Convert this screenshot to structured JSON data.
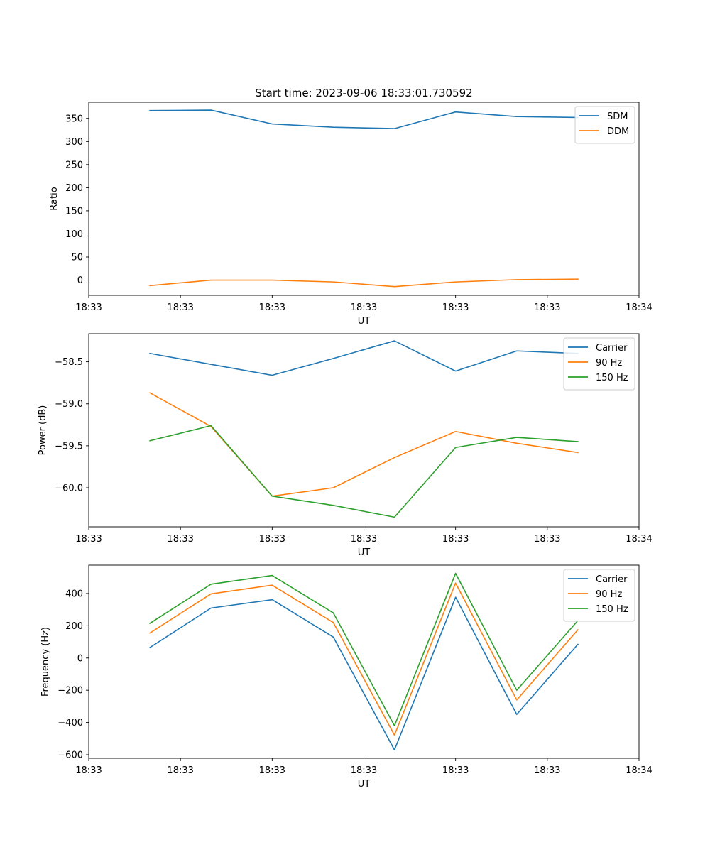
{
  "figure": {
    "title": "Start time: 2023-09-06 18:33:01.730592"
  },
  "chart_data": [
    {
      "type": "line",
      "title": "Start time: 2023-09-06 18:33:01.730592",
      "xlabel": "UT",
      "ylabel": "Ratio",
      "x": [
        1.0,
        2.0,
        3.0,
        4.0,
        5.0,
        6.0,
        7.0,
        8.0
      ],
      "xlim": [
        0.0,
        9.0
      ],
      "xticks": [
        0.0,
        1.5,
        3.0,
        4.5,
        6.0,
        7.5,
        9.0
      ],
      "xticklabels": [
        "18:33",
        "18:33",
        "18:33",
        "18:33",
        "18:33",
        "18:33",
        "18:34"
      ],
      "ylim": [
        -33,
        385
      ],
      "yticks": [
        0,
        50,
        100,
        150,
        200,
        250,
        300,
        350
      ],
      "yticklabels": [
        "0",
        "50",
        "100",
        "150",
        "200",
        "250",
        "300",
        "350"
      ],
      "legend_position": "top-right",
      "series": [
        {
          "name": "SDM",
          "color": "#1f77b4",
          "values": [
            367,
            368,
            338,
            331,
            328,
            364,
            354,
            352
          ]
        },
        {
          "name": "DDM",
          "color": "#ff7f0e",
          "values": [
            -12,
            0,
            0,
            -4,
            -14,
            -4,
            1,
            2
          ]
        }
      ]
    },
    {
      "type": "line",
      "title": "",
      "xlabel": "UT",
      "ylabel": "Power (dB)",
      "x": [
        1.0,
        2.0,
        3.0,
        4.0,
        5.0,
        6.0,
        7.0,
        8.0
      ],
      "xlim": [
        0.0,
        9.0
      ],
      "xticks": [
        0.0,
        1.5,
        3.0,
        4.5,
        6.0,
        7.5,
        9.0
      ],
      "xticklabels": [
        "18:33",
        "18:33",
        "18:33",
        "18:33",
        "18:33",
        "18:33",
        "18:34"
      ],
      "ylim": [
        -60.465,
        -58.165
      ],
      "yticks": [
        -60.0,
        -59.5,
        -59.0,
        -58.5
      ],
      "yticklabels": [
        "−60.0",
        "−59.5",
        "−59.0",
        "−58.5"
      ],
      "legend_position": "top-right",
      "series": [
        {
          "name": "Carrier",
          "color": "#1f77b4",
          "values": [
            -58.4,
            -58.53,
            -58.66,
            -58.46,
            -58.25,
            -58.61,
            -58.37,
            -58.4
          ]
        },
        {
          "name": "90 Hz",
          "color": "#ff7f0e",
          "values": [
            -58.87,
            -59.27,
            -60.1,
            -60.0,
            -59.64,
            -59.33,
            -59.47,
            -59.58
          ]
        },
        {
          "name": "150 Hz",
          "color": "#2ca02c",
          "values": [
            -59.44,
            -59.26,
            -60.1,
            -60.21,
            -60.35,
            -59.52,
            -59.4,
            -59.45
          ]
        }
      ]
    },
    {
      "type": "line",
      "title": "",
      "xlabel": "UT",
      "ylabel": "Frequency (Hz)",
      "x": [
        1.0,
        2.0,
        3.0,
        4.0,
        5.0,
        6.0,
        7.0,
        8.0
      ],
      "xlim": [
        0.0,
        9.0
      ],
      "xticks": [
        0.0,
        1.5,
        3.0,
        4.5,
        6.0,
        7.5,
        9.0
      ],
      "xticklabels": [
        "18:33",
        "18:33",
        "18:33",
        "18:33",
        "18:33",
        "18:33",
        "18:34"
      ],
      "ylim": [
        -622,
        576
      ],
      "yticks": [
        -600,
        -400,
        -200,
        0,
        200,
        400
      ],
      "yticklabels": [
        "−600",
        "−400",
        "−200",
        "0",
        "200",
        "400"
      ],
      "legend_position": "top-right",
      "series": [
        {
          "name": "Carrier",
          "color": "#1f77b4",
          "values": [
            65,
            310,
            362,
            130,
            -570,
            377,
            -350,
            85
          ]
        },
        {
          "name": "90 Hz",
          "color": "#ff7f0e",
          "values": [
            155,
            398,
            452,
            220,
            -478,
            465,
            -260,
            175
          ]
        },
        {
          "name": "150 Hz",
          "color": "#2ca02c",
          "values": [
            215,
            458,
            512,
            280,
            -420,
            525,
            -200,
            232
          ]
        }
      ]
    }
  ]
}
